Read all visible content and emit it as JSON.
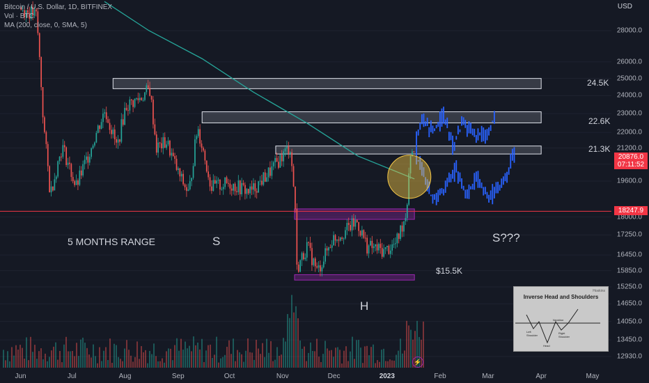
{
  "header": {
    "symbol_line": "Bitcoin / U.S. Dollar, 1D, BITFINEX",
    "vol_line": "Vol · BTC",
    "ma_line": "MA (200, close, 0, SMA, 5)",
    "currency": "USD"
  },
  "price_tags": {
    "current_price": "20876.0",
    "countdown": "07:11:52",
    "support_price": "18247.9"
  },
  "annotations": {
    "range": "5 MONTHS RANGE",
    "left_shoulder": "S",
    "head": "H",
    "right_shoulder": "S???",
    "level_15k": "$15.5K",
    "zone_24k": "24.5K",
    "zone_22k": "22.6K",
    "zone_21k": "21.3K"
  },
  "inset": {
    "title": "Inverse Head and Shoulders",
    "brand": "Hoskins",
    "neckline": "Neckline",
    "left_shoulder": "Left Shoulder",
    "head": "Head",
    "right_shoulder": "Right Shoulder"
  },
  "icons": {
    "event": "lightning-icon"
  },
  "colors": {
    "up": "#26a69a",
    "down": "#ef5350",
    "projection": "#2962ff",
    "ma": "#26a69a",
    "support_line": "#f23645",
    "zone_fill": "#b2b5be",
    "purple_zone": "#9c27b0",
    "highlight": "#f7c948"
  },
  "chart_data": {
    "type": "candlestick",
    "title": "Bitcoin / U.S. Dollar, 1D, BITFINEX",
    "x_ticks": [
      "Jun",
      "Jul",
      "Aug",
      "Sep",
      "Oct",
      "Nov",
      "Dec",
      "2023",
      "Feb",
      "Mar",
      "Apr",
      "May"
    ],
    "y_ticks": [
      12930,
      13450,
      14050,
      14650,
      15250,
      15850,
      16450,
      17250,
      18000,
      19600,
      20400,
      21200,
      22000,
      23000,
      24000,
      25000,
      26000,
      28000
    ],
    "y_scale": "log",
    "ylim": [
      12800,
      30000
    ],
    "price_path": [
      {
        "date": "2022-06-01",
        "price": 29500
      },
      {
        "date": "2022-06-10",
        "price": 29000
      },
      {
        "date": "2022-06-14",
        "price": 22500
      },
      {
        "date": "2022-06-18",
        "price": 19000
      },
      {
        "date": "2022-06-25",
        "price": 21300
      },
      {
        "date": "2022-07-03",
        "price": 19300
      },
      {
        "date": "2022-07-10",
        "price": 20800
      },
      {
        "date": "2022-07-20",
        "price": 23200
      },
      {
        "date": "2022-07-27",
        "price": 21200
      },
      {
        "date": "2022-08-01",
        "price": 23400
      },
      {
        "date": "2022-08-10",
        "price": 23900
      },
      {
        "date": "2022-08-15",
        "price": 24400
      },
      {
        "date": "2022-08-19",
        "price": 21200
      },
      {
        "date": "2022-08-25",
        "price": 21500
      },
      {
        "date": "2022-09-01",
        "price": 19900
      },
      {
        "date": "2022-09-07",
        "price": 19000
      },
      {
        "date": "2022-09-12",
        "price": 22300
      },
      {
        "date": "2022-09-20",
        "price": 19300
      },
      {
        "date": "2022-09-30",
        "price": 19500
      },
      {
        "date": "2022-10-13",
        "price": 19100
      },
      {
        "date": "2022-10-25",
        "price": 20100
      },
      {
        "date": "2022-11-05",
        "price": 21300
      },
      {
        "date": "2022-11-08",
        "price": 18500
      },
      {
        "date": "2022-11-09",
        "price": 15900
      },
      {
        "date": "2022-11-15",
        "price": 16800
      },
      {
        "date": "2022-11-21",
        "price": 15800
      },
      {
        "date": "2022-11-30",
        "price": 17100
      },
      {
        "date": "2022-12-05",
        "price": 17300
      },
      {
        "date": "2022-12-14",
        "price": 17800
      },
      {
        "date": "2022-12-20",
        "price": 16800
      },
      {
        "date": "2022-12-30",
        "price": 16600
      },
      {
        "date": "2023-01-06",
        "price": 16900
      },
      {
        "date": "2023-01-12",
        "price": 18200
      },
      {
        "date": "2023-01-14",
        "price": 20900
      },
      {
        "date": "2023-01-17",
        "price": 21300
      }
    ],
    "ma_path": [
      {
        "date": "2022-07-20",
        "price": 30000
      },
      {
        "date": "2022-08-15",
        "price": 28000
      },
      {
        "date": "2022-09-15",
        "price": 26200
      },
      {
        "date": "2022-10-15",
        "price": 24200
      },
      {
        "date": "2022-11-15",
        "price": 22500
      },
      {
        "date": "2022-12-15",
        "price": 20800
      },
      {
        "date": "2023-01-17",
        "price": 19700
      }
    ],
    "projection_upper": [
      {
        "date": "2023-01-17",
        "price": 21200
      },
      {
        "date": "2023-01-21",
        "price": 22800
      },
      {
        "date": "2023-01-27",
        "price": 22000
      },
      {
        "date": "2023-02-03",
        "price": 22900
      },
      {
        "date": "2023-02-08",
        "price": 21300
      },
      {
        "date": "2023-02-14",
        "price": 22500
      },
      {
        "date": "2023-02-22",
        "price": 21800
      },
      {
        "date": "2023-03-01",
        "price": 22000
      },
      {
        "date": "2023-03-05",
        "price": 23100
      }
    ],
    "projection_lower": [
      {
        "date": "2023-01-17",
        "price": 21000
      },
      {
        "date": "2023-01-22",
        "price": 19800
      },
      {
        "date": "2023-01-27",
        "price": 18800
      },
      {
        "date": "2023-02-03",
        "price": 19200
      },
      {
        "date": "2023-02-10",
        "price": 20200
      },
      {
        "date": "2023-02-16",
        "price": 19000
      },
      {
        "date": "2023-02-22",
        "price": 19700
      },
      {
        "date": "2023-03-01",
        "price": 18800
      },
      {
        "date": "2023-03-10",
        "price": 19600
      },
      {
        "date": "2023-03-16",
        "price": 20900
      }
    ],
    "zones": [
      {
        "label": "24.5K",
        "from": "2022-07-25",
        "to": "2023-04-01",
        "low": 24400,
        "high": 25000
      },
      {
        "label": "22.6K",
        "from": "2022-09-15",
        "to": "2023-04-01",
        "low": 22500,
        "high": 23100
      },
      {
        "label": "21.3K",
        "from": "2022-10-28",
        "to": "2023-04-01",
        "low": 20900,
        "high": 21300
      }
    ],
    "purple_zones": [
      {
        "from": "2022-11-08",
        "to": "2023-01-17",
        "low": 17900,
        "high": 18350
      },
      {
        "from": "2022-11-08",
        "to": "2023-01-17",
        "low": 15500,
        "high": 15700
      }
    ],
    "support_line": 18247.9
  }
}
